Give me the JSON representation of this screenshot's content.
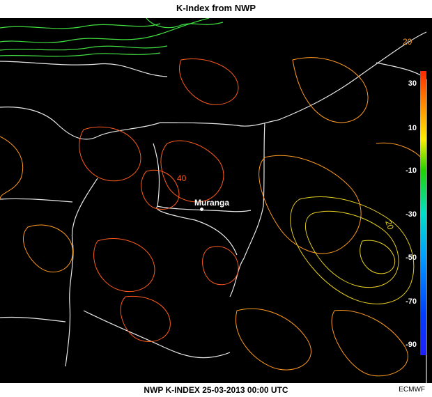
{
  "title": "K-Index from NWP",
  "footer": "NWP K-INDEX 25-03-2013 00:00 UTC",
  "credit": "ECMWF",
  "city": "Muranga",
  "colorbar_labels": [
    "30",
    "10",
    "-10",
    "-30",
    "-50",
    "-70",
    "-90"
  ],
  "contour_labels": [
    "20",
    "40",
    "20"
  ],
  "colors": {
    "background": "#000000",
    "borders": "#e8e8e8",
    "contour_high": "#ff5a1e",
    "contour_mid": "#ff9a20",
    "contour_low": "#e8d020",
    "contour_green": "#40e040"
  }
}
